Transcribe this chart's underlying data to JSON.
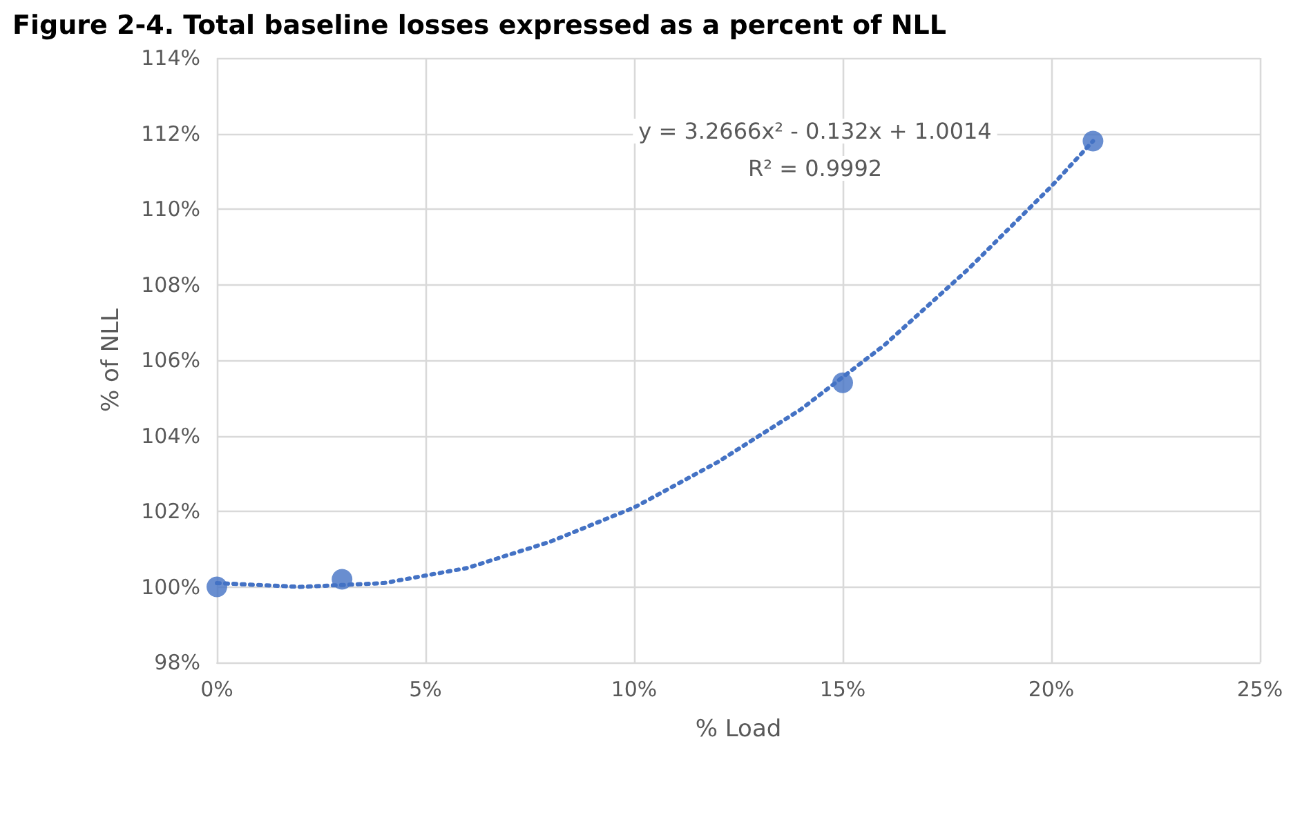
{
  "chart_data": {
    "type": "scatter",
    "title": "Figure 2-4. Total baseline losses expressed as a percent of NLL",
    "xlabel": "% Load",
    "ylabel": "% of NLL",
    "x": [
      0,
      3,
      15,
      21
    ],
    "series": [
      {
        "color": "#4472c4",
        "marker": "circle",
        "values": [
          100.0,
          100.2,
          105.4,
          111.8
        ]
      },
      {
        "type": "line",
        "color": "#4472c4",
        "marker": "none",
        "line_style": "dotted",
        "x": [
          0,
          2,
          4,
          6,
          8,
          10,
          12,
          14,
          16,
          18,
          20,
          21
        ],
        "values": [
          100.1,
          100.0,
          100.1,
          100.5,
          101.2,
          102.1,
          103.3,
          104.7,
          106.4,
          108.4,
          110.6,
          111.8
        ]
      }
    ],
    "annotations": [
      "y = 3.2666x² - 0.132x + 1.0014",
      "R² = 0.9992"
    ],
    "xlim": [
      0,
      25
    ],
    "xticks": [
      {
        "value": 0,
        "label": "0%"
      },
      {
        "value": 5,
        "label": "5%"
      },
      {
        "value": 10,
        "label": "10%"
      },
      {
        "value": 15,
        "label": "15%"
      },
      {
        "value": 20,
        "label": "20%"
      },
      {
        "value": 25,
        "label": "25%"
      }
    ],
    "ylim": [
      98,
      114
    ],
    "yticks": [
      {
        "value": 98,
        "label": "98%"
      },
      {
        "value": 100,
        "label": "100%"
      },
      {
        "value": 102,
        "label": "102%"
      },
      {
        "value": 104,
        "label": "104%"
      },
      {
        "value": 106,
        "label": "106%"
      },
      {
        "value": 108,
        "label": "108%"
      },
      {
        "value": 110,
        "label": "110%"
      },
      {
        "value": 112,
        "label": "112%"
      },
      {
        "value": 114,
        "label": "114%"
      }
    ],
    "grid": true
  }
}
